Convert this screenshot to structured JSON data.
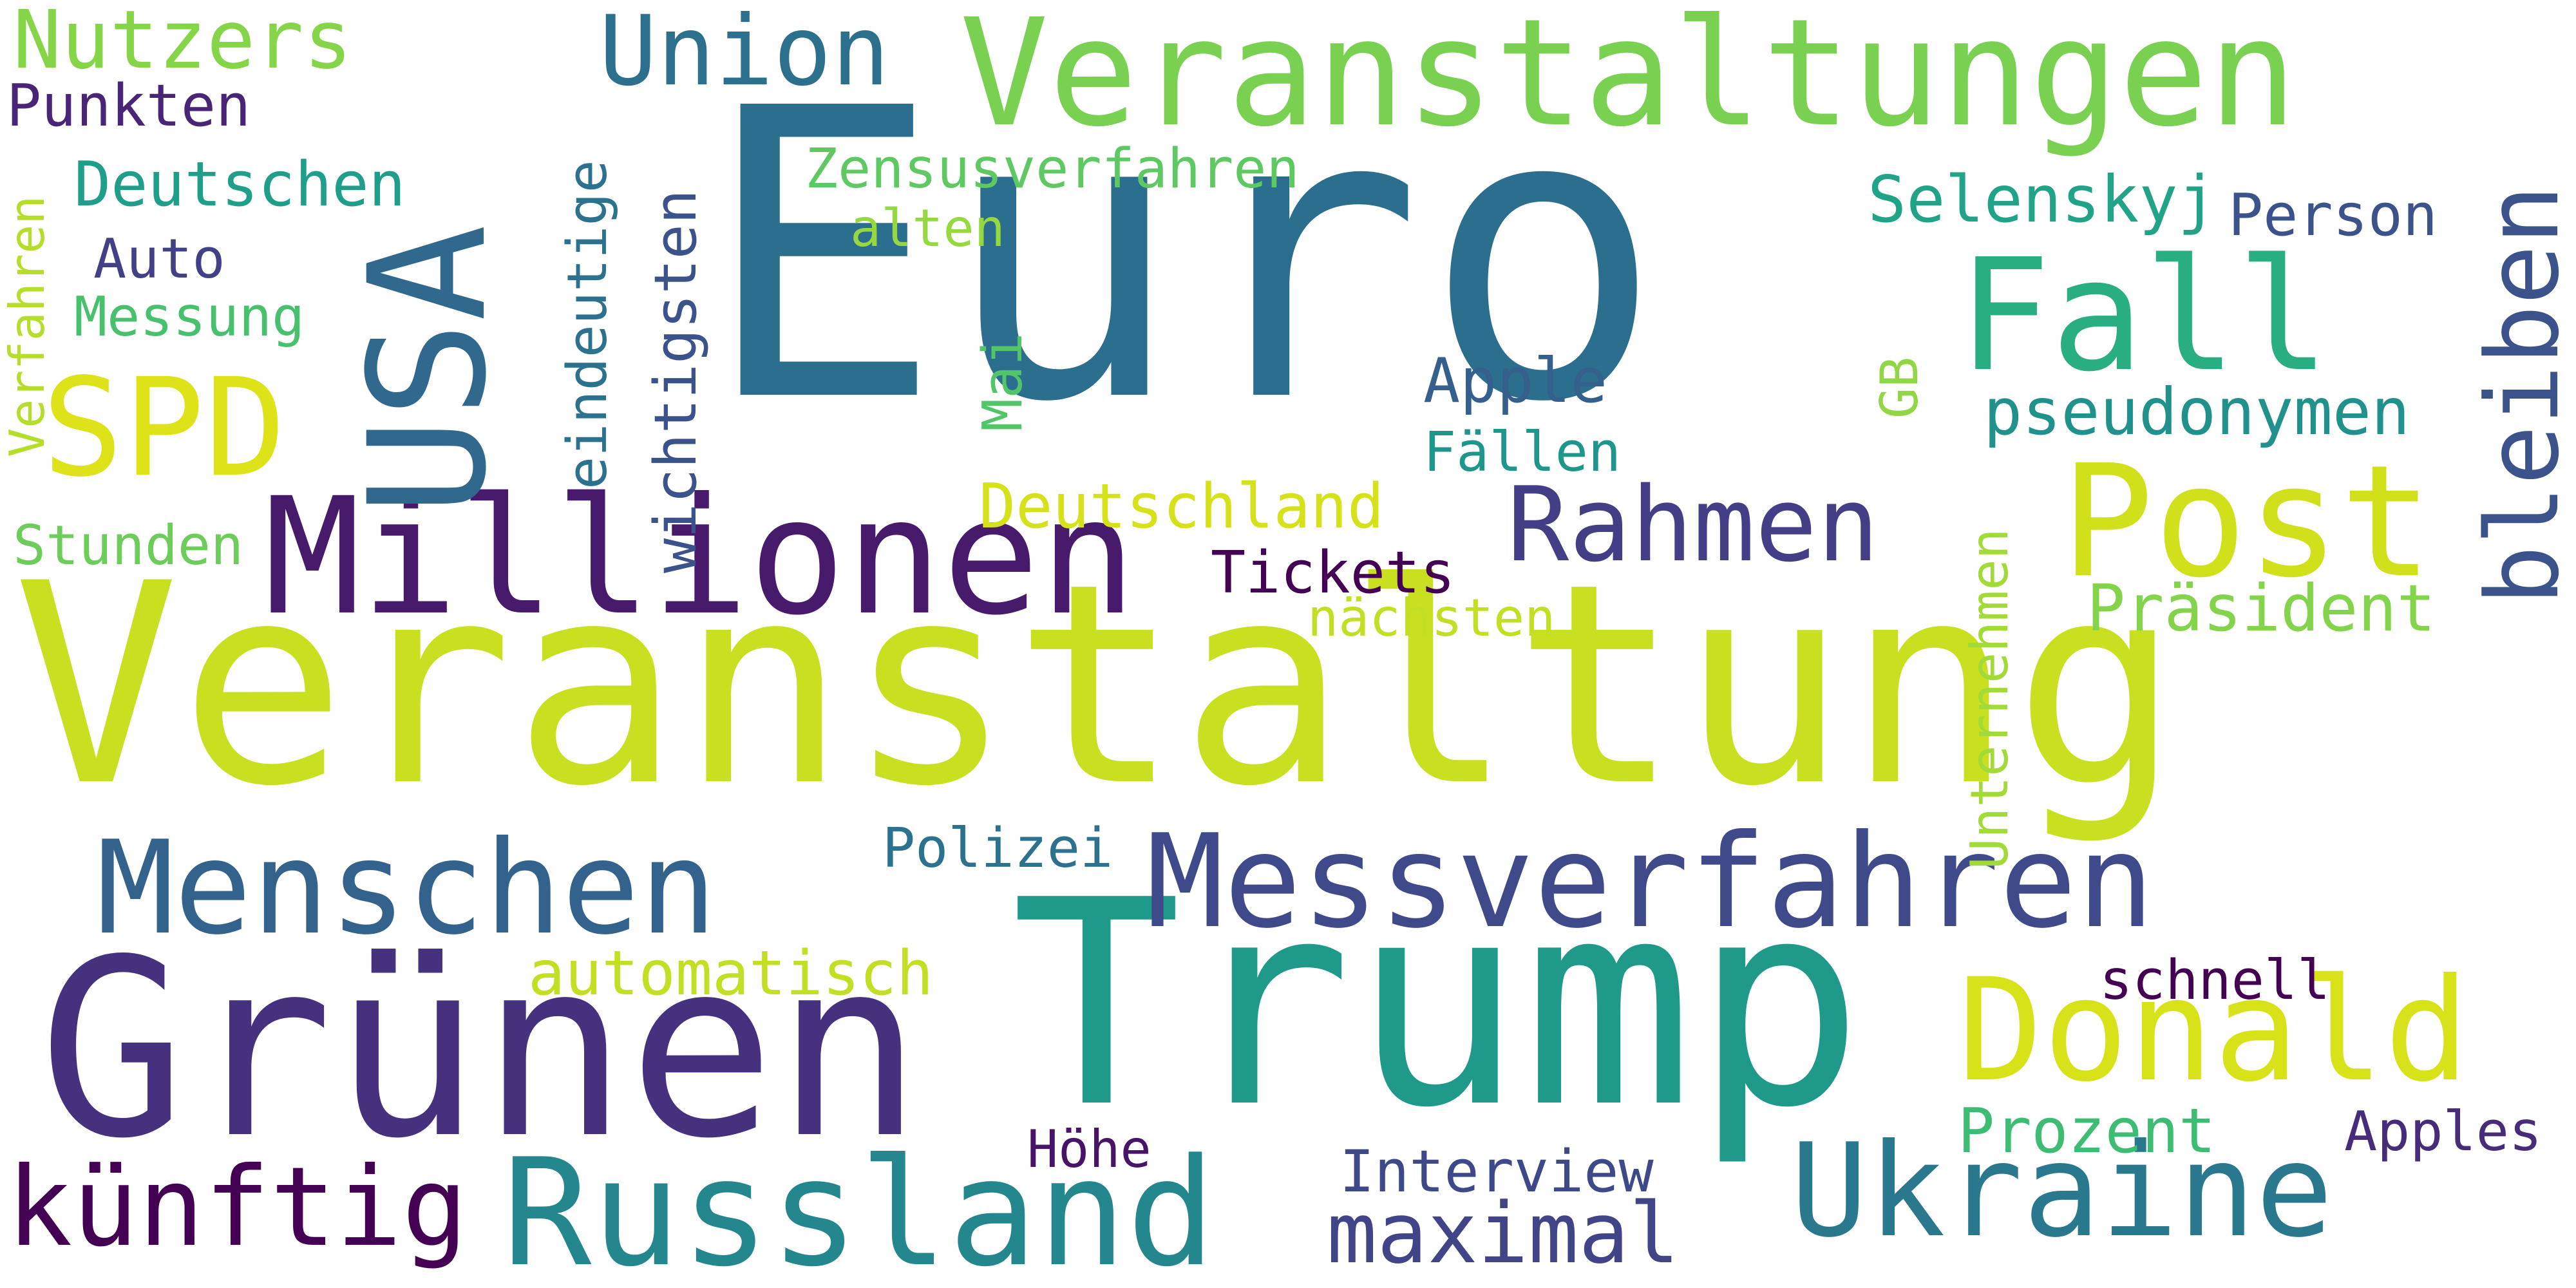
{
  "words": {
    "veranstaltung": {
      "text": "Veranstaltung",
      "color": "#c8e020"
    },
    "euro": {
      "text": "Euro",
      "color": "#2c6e8e"
    },
    "trump": {
      "text": "Trump",
      "color": "#1f9a8a"
    },
    "gruenen": {
      "text": "Grünen",
      "color": "#46317e"
    },
    "veranstaltungen": {
      "text": "Veranstaltungen",
      "color": "#7ad151"
    },
    "millionen": {
      "text": "Millionen",
      "color": "#481a6c"
    },
    "russland": {
      "text": "Russland",
      "color": "#24878e"
    },
    "messverfahren": {
      "text": "Messverfahren",
      "color": "#3e4a89"
    },
    "usa": {
      "text": "USA",
      "color": "#31688e"
    },
    "menschen": {
      "text": "Menschen",
      "color": "#33638d"
    },
    "ukraine": {
      "text": "Ukraine",
      "color": "#2a788e"
    },
    "donald": {
      "text": "Donald",
      "color": "#d8e219"
    },
    "post": {
      "text": "Post",
      "color": "#d0e11c"
    },
    "fall": {
      "text": "Fall",
      "color": "#28ae80"
    },
    "spd": {
      "text": "SPD",
      "color": "#dde318"
    },
    "kuenftig": {
      "text": "künftig",
      "color": "#440154"
    },
    "maximal": {
      "text": "maximal",
      "color": "#414487"
    },
    "rahmen": {
      "text": "Rahmen",
      "color": "#433e85"
    },
    "union": {
      "text": "Union",
      "color": "#2d708e"
    },
    "bleiben": {
      "text": "bleiben",
      "color": "#3b528b"
    },
    "nutzers": {
      "text": "Nutzers",
      "color": "#86d549"
    },
    "pseudonymen": {
      "text": "pseudonymen",
      "color": "#21918c"
    },
    "selenskyj": {
      "text": "Selenskyj",
      "color": "#20a386"
    },
    "person": {
      "text": "Person",
      "color": "#3b528b"
    },
    "deutschland": {
      "text": "Deutschland",
      "color": "#d5e21a"
    },
    "praesident": {
      "text": "Präsident",
      "color": "#84d44b"
    },
    "automatisch": {
      "text": "automatisch",
      "color": "#c2df23"
    },
    "interview": {
      "text": "Interview",
      "color": "#3e4989"
    },
    "zensusverfahren": {
      "text": "Zensusverfahren",
      "color": "#5ec962"
    },
    "deutschen": {
      "text": "Deutschen",
      "color": "#1f9e89"
    },
    "punkten": {
      "text": "Punkten",
      "color": "#482576"
    },
    "tickets": {
      "text": "Tickets",
      "color": "#440154"
    },
    "apple": {
      "text": "Apple",
      "color": "#355f8d"
    },
    "faellen": {
      "text": "Fällen",
      "color": "#1f968b"
    },
    "apples": {
      "text": "Apples",
      "color": "#472c7a"
    },
    "schnell": {
      "text": "schnell",
      "color": "#440154"
    },
    "prozent": {
      "text": "Prozent",
      "color": "#3dbc74"
    },
    "polizei": {
      "text": "Polizei",
      "color": "#2c728e"
    },
    "naechsten": {
      "text": "nächsten",
      "color": "#c2df23"
    },
    "hoehe": {
      "text": "Höhe",
      "color": "#481467"
    },
    "stunden": {
      "text": "Stunden",
      "color": "#6ccd5a"
    },
    "messung": {
      "text": "Messung",
      "color": "#48c16e"
    },
    "auto": {
      "text": "Auto",
      "color": "#424086"
    },
    "alten": {
      "text": "alten",
      "color": "#95d840"
    },
    "eindeutige": {
      "text": "eindeutige",
      "color": "#2c728e"
    },
    "wichtigsten": {
      "text": "wichtigsten",
      "color": "#3b528b"
    },
    "verfahren": {
      "text": "Verfahren",
      "color": "#b5de2b"
    },
    "mai": {
      "text": "Mai",
      "color": "#52c569"
    },
    "gb": {
      "text": "GB",
      "color": "#90d743"
    },
    "unternehmen": {
      "text": "Unternehmen",
      "color": "#a2da37"
    }
  }
}
